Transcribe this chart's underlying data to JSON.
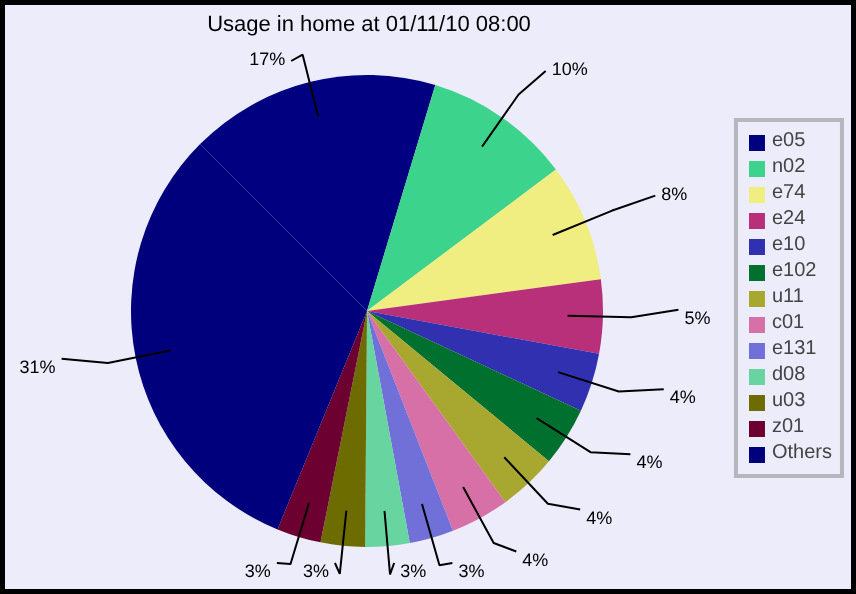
{
  "chart_data": {
    "type": "pie",
    "title": "Usage in home at 01/11/10 08:00",
    "categories": [
      "e05",
      "n02",
      "e74",
      "e24",
      "e10",
      "e102",
      "u11",
      "c01",
      "e131",
      "d08",
      "u03",
      "z01",
      "Others"
    ],
    "values": [
      17,
      10,
      8,
      5,
      4,
      4,
      4,
      4,
      3,
      3,
      3,
      3,
      31
    ],
    "value_labels": [
      "17%",
      "10%",
      "8%",
      "5%",
      "4%",
      "4%",
      "4%",
      "4%",
      "3%",
      "3%",
      "3%",
      "3%",
      "31%"
    ],
    "colors": [
      "#000080",
      "#3cd38c",
      "#f0ee80",
      "#b8307a",
      "#3030b0",
      "#00702e",
      "#a8a830",
      "#d870a8",
      "#7070d8",
      "#68d4a0",
      "#6c6c00",
      "#6c0030",
      "#00007c"
    ],
    "legend": "right"
  }
}
